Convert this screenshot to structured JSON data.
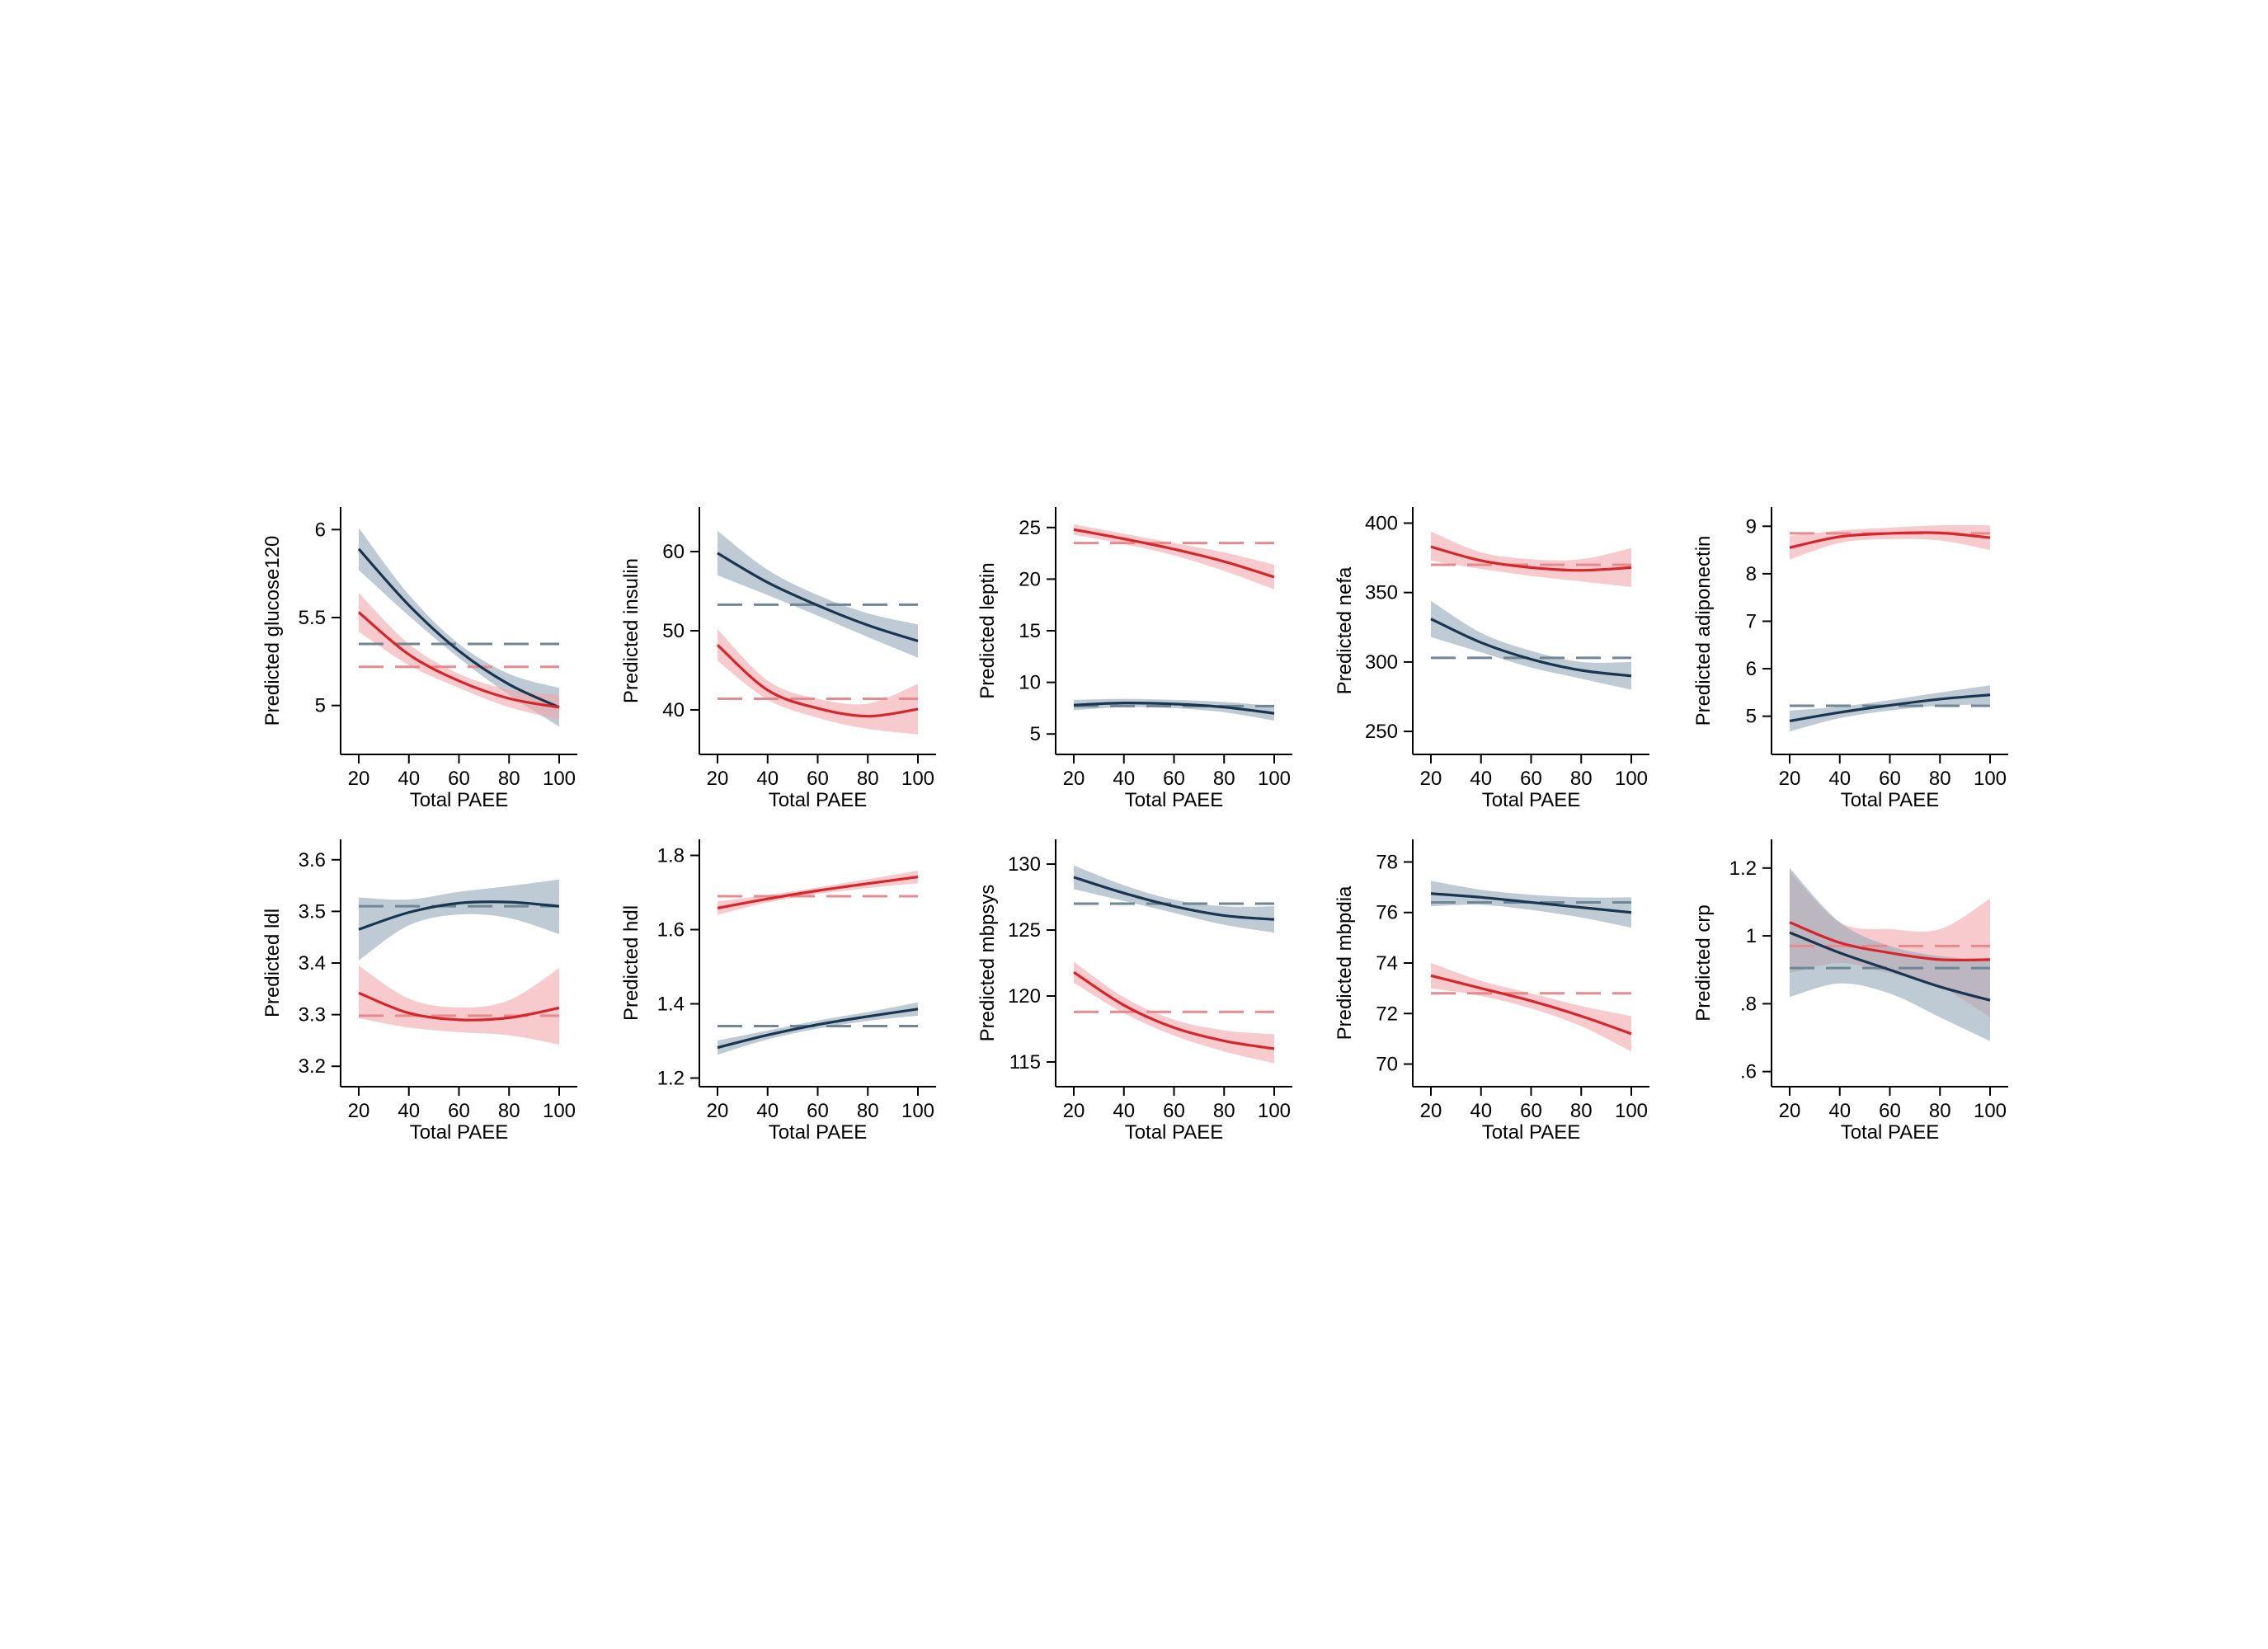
{
  "colors": {
    "red": "#d7262b",
    "navy": "#1a3550",
    "red_band": "#f1a8ab",
    "navy_band": "#93a8b8",
    "red_ref": "#e88a8d",
    "navy_ref": "#6f8696"
  },
  "chart_data": [
    {
      "type": "line",
      "xlabel": "Total PAEE",
      "ylabel": "Predicted glucose120",
      "xlim": [
        20,
        100
      ],
      "ylim": [
        4.75,
        6.1
      ],
      "xticks": [
        "20",
        "40",
        "60",
        "80",
        "100"
      ],
      "yticks": [
        "5",
        "5.5",
        "6"
      ],
      "ytick_values": [
        5,
        5.5,
        6
      ],
      "x": [
        20,
        40,
        60,
        80,
        100
      ],
      "series": [
        {
          "color": "navy",
          "values": [
            5.89,
            5.57,
            5.31,
            5.12,
            4.99
          ],
          "lower": [
            5.77,
            5.51,
            5.27,
            5.06,
            4.88
          ],
          "upper": [
            6.01,
            5.63,
            5.35,
            5.18,
            5.1
          ],
          "ref": 5.35
        },
        {
          "color": "red",
          "values": [
            5.53,
            5.29,
            5.14,
            5.04,
            4.99
          ],
          "lower": [
            5.42,
            5.23,
            5.1,
            4.99,
            4.92
          ],
          "upper": [
            5.64,
            5.35,
            5.18,
            5.09,
            5.06
          ],
          "ref": 5.22
        }
      ]
    },
    {
      "type": "line",
      "xlabel": "Total PAEE",
      "ylabel": "Predicted insulin",
      "xlim": [
        20,
        100
      ],
      "ylim": [
        35,
        65
      ],
      "xticks": [
        "20",
        "40",
        "60",
        "80",
        "100"
      ],
      "yticks": [
        "40",
        "50",
        "60"
      ],
      "ytick_values": [
        40,
        50,
        60
      ],
      "x": [
        20,
        40,
        60,
        80,
        100
      ],
      "series": [
        {
          "color": "navy",
          "values": [
            59.8,
            56.1,
            53.2,
            50.7,
            48.7
          ],
          "lower": [
            57.0,
            54.5,
            51.9,
            49.2,
            46.6
          ],
          "upper": [
            62.6,
            57.7,
            54.5,
            52.2,
            50.8
          ],
          "ref": 53.3
        },
        {
          "color": "red",
          "values": [
            48.2,
            42.5,
            40.2,
            39.2,
            40.1
          ],
          "lower": [
            46.2,
            41.3,
            39.0,
            37.6,
            36.9
          ],
          "upper": [
            50.2,
            43.7,
            41.4,
            40.8,
            43.3
          ],
          "ref": 41.4
        }
      ]
    },
    {
      "type": "line",
      "xlabel": "Total PAEE",
      "ylabel": "Predicted leptin",
      "xlim": [
        20,
        100
      ],
      "ylim": [
        3.5,
        26.5
      ],
      "xticks": [
        "20",
        "40",
        "60",
        "80",
        "100"
      ],
      "yticks": [
        "5",
        "10",
        "15",
        "20",
        "25"
      ],
      "ytick_values": [
        5,
        10,
        15,
        20,
        25
      ],
      "x": [
        20,
        40,
        60,
        80,
        100
      ],
      "series": [
        {
          "color": "red",
          "values": [
            24.8,
            23.9,
            22.9,
            21.7,
            20.2
          ],
          "lower": [
            24.3,
            23.4,
            22.3,
            20.8,
            19.0
          ],
          "upper": [
            25.3,
            24.4,
            23.5,
            22.6,
            21.4
          ],
          "ref": 23.5
        },
        {
          "color": "navy",
          "values": [
            7.8,
            8.0,
            7.9,
            7.6,
            7.0
          ],
          "lower": [
            7.3,
            7.6,
            7.5,
            7.1,
            6.3
          ],
          "upper": [
            8.3,
            8.4,
            8.3,
            8.1,
            7.7
          ],
          "ref": 7.7
        }
      ]
    },
    {
      "type": "line",
      "xlabel": "Total PAEE",
      "ylabel": "Predicted nefa",
      "xlim": [
        20,
        100
      ],
      "ylim": [
        237,
        408
      ],
      "xticks": [
        "20",
        "40",
        "60",
        "80",
        "100"
      ],
      "yticks": [
        "250",
        "300",
        "350",
        "400"
      ],
      "ytick_values": [
        250,
        300,
        350,
        400
      ],
      "x": [
        20,
        40,
        60,
        80,
        100
      ],
      "series": [
        {
          "color": "red",
          "values": [
            383,
            373,
            368,
            366,
            368
          ],
          "lower": [
            373,
            367,
            362,
            358,
            354
          ],
          "upper": [
            394,
            379,
            374,
            374,
            382
          ],
          "ref": 370
        },
        {
          "color": "navy",
          "values": [
            331,
            314,
            302,
            294,
            290
          ],
          "lower": [
            318,
            307,
            296,
            288,
            280
          ],
          "upper": [
            344,
            321,
            308,
            300,
            300
          ],
          "ref": 303
        }
      ]
    },
    {
      "type": "line",
      "xlabel": "Total PAEE",
      "ylabel": "Predicted adiponectin",
      "xlim": [
        20,
        100
      ],
      "ylim": [
        4.3,
        9.3
      ],
      "xticks": [
        "20",
        "40",
        "60",
        "80",
        "100"
      ],
      "yticks": [
        "5",
        "6",
        "7",
        "8",
        "9"
      ],
      "ytick_values": [
        5,
        6,
        7,
        8,
        9
      ],
      "x": [
        20,
        40,
        60,
        80,
        100
      ],
      "series": [
        {
          "color": "red",
          "values": [
            8.55,
            8.78,
            8.85,
            8.86,
            8.76
          ],
          "lower": [
            8.3,
            8.65,
            8.73,
            8.7,
            8.5
          ],
          "upper": [
            8.8,
            8.91,
            8.97,
            9.02,
            9.02
          ],
          "ref": 8.85
        },
        {
          "color": "navy",
          "values": [
            4.9,
            5.08,
            5.23,
            5.36,
            5.45
          ],
          "lower": [
            4.68,
            4.96,
            5.12,
            5.22,
            5.25
          ],
          "upper": [
            5.12,
            5.2,
            5.34,
            5.5,
            5.65
          ],
          "ref": 5.22
        }
      ]
    },
    {
      "type": "line",
      "xlabel": "Total PAEE",
      "ylabel": "Predicted ldl",
      "xlim": [
        20,
        100
      ],
      "ylim": [
        3.17,
        3.63
      ],
      "xticks": [
        "20",
        "40",
        "60",
        "80",
        "100"
      ],
      "yticks": [
        "3.2",
        "3.3",
        "3.4",
        "3.5",
        "3.6"
      ],
      "ytick_values": [
        3.2,
        3.3,
        3.4,
        3.5,
        3.6
      ],
      "x": [
        20,
        40,
        60,
        80,
        100
      ],
      "series": [
        {
          "color": "navy",
          "values": [
            3.465,
            3.498,
            3.516,
            3.518,
            3.51
          ],
          "lower": [
            3.405,
            3.473,
            3.494,
            3.487,
            3.456
          ],
          "upper": [
            3.527,
            3.523,
            3.538,
            3.549,
            3.562
          ],
          "ref": 3.51
        },
        {
          "color": "red",
          "values": [
            3.342,
            3.303,
            3.29,
            3.294,
            3.313
          ],
          "lower": [
            3.293,
            3.275,
            3.266,
            3.26,
            3.242
          ],
          "upper": [
            3.395,
            3.331,
            3.314,
            3.328,
            3.39
          ],
          "ref": 3.298
        }
      ]
    },
    {
      "type": "line",
      "xlabel": "Total PAEE",
      "ylabel": "Predicted hdl",
      "xlim": [
        20,
        100
      ],
      "ylim": [
        1.19,
        1.83
      ],
      "xticks": [
        "20",
        "40",
        "60",
        "80",
        "100"
      ],
      "yticks": [
        "1.2",
        "1.4",
        "1.6",
        "1.8"
      ],
      "ytick_values": [
        1.2,
        1.4,
        1.6,
        1.8
      ],
      "x": [
        20,
        40,
        60,
        80,
        100
      ],
      "series": [
        {
          "color": "red",
          "values": [
            1.658,
            1.683,
            1.705,
            1.724,
            1.742
          ],
          "lower": [
            1.64,
            1.673,
            1.696,
            1.712,
            1.725
          ],
          "upper": [
            1.676,
            1.693,
            1.714,
            1.736,
            1.759
          ],
          "ref": 1.69
        },
        {
          "color": "navy",
          "values": [
            1.282,
            1.316,
            1.344,
            1.366,
            1.386
          ],
          "lower": [
            1.263,
            1.304,
            1.333,
            1.354,
            1.368
          ],
          "upper": [
            1.301,
            1.328,
            1.355,
            1.378,
            1.404
          ],
          "ref": 1.34
        }
      ]
    },
    {
      "type": "line",
      "xlabel": "Total PAEE",
      "ylabel": "Predicted mbpsys",
      "xlim": [
        20,
        100
      ],
      "ylim": [
        113.5,
        131.5
      ],
      "xticks": [
        "20",
        "40",
        "60",
        "80",
        "100"
      ],
      "yticks": [
        "115",
        "120",
        "125",
        "130"
      ],
      "ytick_values": [
        115,
        120,
        125,
        130
      ],
      "x": [
        20,
        40,
        60,
        80,
        100
      ],
      "series": [
        {
          "color": "navy",
          "values": [
            129.0,
            127.8,
            126.8,
            126.1,
            125.8
          ],
          "lower": [
            128.1,
            127.2,
            126.3,
            125.4,
            124.8
          ],
          "upper": [
            129.9,
            128.4,
            127.3,
            126.8,
            126.8
          ],
          "ref": 127.0
        },
        {
          "color": "red",
          "values": [
            121.8,
            119.3,
            117.6,
            116.6,
            116.0
          ],
          "lower": [
            121.0,
            118.7,
            117.0,
            115.8,
            114.9
          ],
          "upper": [
            122.6,
            119.9,
            118.2,
            117.4,
            117.1
          ],
          "ref": 118.8
        }
      ]
    },
    {
      "type": "line",
      "xlabel": "Total PAEE",
      "ylabel": "Predicted mbpdia",
      "xlim": [
        20,
        100
      ],
      "ylim": [
        69.3,
        78.7
      ],
      "xticks": [
        "20",
        "40",
        "60",
        "80",
        "100"
      ],
      "yticks": [
        "70",
        "72",
        "74",
        "76",
        "78"
      ],
      "ytick_values": [
        70,
        72,
        74,
        76,
        78
      ],
      "x": [
        20,
        40,
        60,
        80,
        100
      ],
      "series": [
        {
          "color": "navy",
          "values": [
            76.75,
            76.6,
            76.4,
            76.2,
            76.0
          ],
          "lower": [
            76.25,
            76.3,
            76.1,
            75.8,
            75.4
          ],
          "upper": [
            77.25,
            76.9,
            76.7,
            76.6,
            76.6
          ],
          "ref": 76.4
        },
        {
          "color": "red",
          "values": [
            73.5,
            73.0,
            72.5,
            71.9,
            71.2
          ],
          "lower": [
            73.0,
            72.7,
            72.2,
            71.5,
            70.5
          ],
          "upper": [
            74.0,
            73.3,
            72.8,
            72.3,
            71.9
          ],
          "ref": 72.8
        }
      ]
    },
    {
      "type": "line",
      "xlabel": "Total PAEE",
      "ylabel": "Predicted crp",
      "xlim": [
        20,
        100
      ],
      "ylim": [
        0.57,
        1.27
      ],
      "xticks": [
        "20",
        "40",
        "60",
        "80",
        "100"
      ],
      "yticks": [
        ".6",
        ".8",
        "1",
        "1.2"
      ],
      "ytick_values": [
        0.6,
        0.8,
        1.0,
        1.2
      ],
      "x": [
        20,
        40,
        60,
        80,
        100
      ],
      "series": [
        {
          "color": "red",
          "values": [
            1.04,
            0.98,
            0.95,
            0.93,
            0.93
          ],
          "lower": [
            0.89,
            0.92,
            0.89,
            0.85,
            0.76
          ],
          "upper": [
            1.19,
            1.04,
            1.02,
            1.02,
            1.11
          ],
          "ref": 0.97
        },
        {
          "color": "navy",
          "values": [
            1.01,
            0.95,
            0.9,
            0.85,
            0.81
          ],
          "lower": [
            0.82,
            0.86,
            0.83,
            0.76,
            0.69
          ],
          "upper": [
            1.2,
            1.04,
            0.97,
            0.94,
            0.93
          ],
          "ref": 0.905
        }
      ]
    }
  ]
}
